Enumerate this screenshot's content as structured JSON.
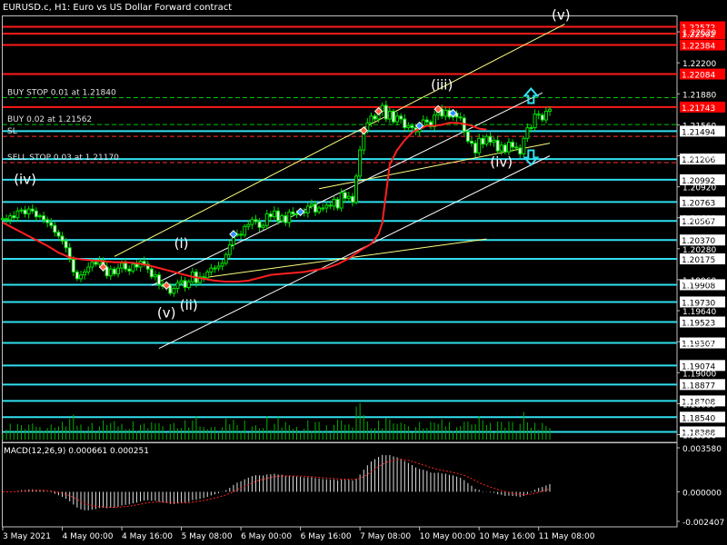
{
  "header": {
    "title": "EURUSD.c, H1:  Euro vs US Dollar Forward contract"
  },
  "macd_label": "MACD(12,26,9) 0.000661 0.000251",
  "chart_data": {
    "type": "candlestick",
    "symbol": "EURUSD.c",
    "timeframe": "H1",
    "price_range": [
      1.1828,
      1.2268
    ],
    "price_ticks": [
      {
        "value": 1.2252,
        "label": "1.22520"
      },
      {
        "value": 1.222,
        "label": "1.22200"
      },
      {
        "value": 1.2188,
        "label": "1.21880"
      },
      {
        "value": 1.2156,
        "label": "1.21560"
      },
      {
        "value": 1.2124,
        "label": "1.21240"
      },
      {
        "value": 1.2092,
        "label": "1.20920"
      },
      {
        "value": 1.206,
        "label": "1.20600"
      },
      {
        "value": 1.2028,
        "label": "1.20280"
      },
      {
        "value": 1.1996,
        "label": "1.19960"
      },
      {
        "value": 1.1964,
        "label": "1.19640"
      },
      {
        "value": 1.1932,
        "label": "1.19320"
      },
      {
        "value": 1.19,
        "label": "1.19000"
      },
      {
        "value": 1.1868,
        "label": "1.18680"
      },
      {
        "value": 1.1836,
        "label": "1.18360"
      }
    ],
    "red_levels": [
      1.22572,
      1.22502,
      1.22384,
      1.22084,
      1.21743
    ],
    "cyan_levels": [
      1.21494,
      1.21206,
      1.20992,
      1.20763,
      1.20567,
      1.2037,
      1.20175,
      1.19908,
      1.1973,
      1.19523,
      1.19307,
      1.19074,
      1.18877,
      1.18708,
      1.1854,
      1.18388
    ],
    "red_price_labels": [
      "1.22572",
      "1.22502",
      "1.22384",
      "1.22084",
      "1.21743"
    ],
    "cyan_price_labels": [
      "1.21494",
      "1.21206",
      "1.20992",
      "1.20763",
      "1.20567",
      "1.20370",
      "1.20175",
      "1.19908",
      "1.19730",
      "1.19523",
      "1.19307",
      "1.19074",
      "1.18877",
      "1.18708",
      "1.18540",
      "1.18388"
    ],
    "order_lines": [
      {
        "label": "BUY STOP 0.01 at 1.21840",
        "price": 1.2184,
        "color": "#00c800",
        "style": "dash"
      },
      {
        "label": "BUY 0.02 at 1.21562",
        "price": 1.21562,
        "color": "#00c800",
        "style": "dash"
      },
      {
        "label": "SL",
        "price": 1.2144,
        "color": "#ff3030",
        "style": "dash"
      },
      {
        "label": "SELL STOP 0.03 at 1.21170",
        "price": 1.2117,
        "color": "#ff3030",
        "style": "dash"
      }
    ],
    "wave_labels": [
      {
        "text": "(iv)",
        "x_idx": 6,
        "price": 1.2095
      },
      {
        "text": "(i)",
        "x_idx": 48,
        "price": 1.2029
      },
      {
        "text": "(v)",
        "x_idx": 44,
        "price": 1.1957
      },
      {
        "text": "(ii)",
        "x_idx": 50,
        "price": 1.1965
      },
      {
        "text": "(iii)",
        "x_idx": 118,
        "price": 1.21925
      },
      {
        "text": "(iv)",
        "x_idx": 134,
        "price": 1.21125
      },
      {
        "text": "(v)",
        "x_idx": 150,
        "price": 1.22645
      }
    ],
    "close": [
      1.2059,
      1.2058,
      1.2062,
      1.206,
      1.2067,
      1.2068,
      1.2064,
      1.2069,
      1.2067,
      1.2061,
      1.2062,
      1.2058,
      1.2055,
      1.2052,
      1.2045,
      1.2041,
      1.2036,
      1.2029,
      1.2017,
      1.2004,
      1.1997,
      1.2001,
      1.2004,
      1.2009,
      1.2014,
      1.2012,
      1.2016,
      1.2009,
      1.2,
      1.2007,
      1.2002,
      1.2008,
      1.2013,
      1.2007,
      1.2005,
      1.2012,
      1.2009,
      1.2015,
      1.2012,
      1.2007,
      1.1999,
      1.2001,
      1.1991,
      1.1989,
      1.199,
      1.1982,
      1.1987,
      1.1993,
      1.1995,
      1.1988,
      1.1994,
      1.2004,
      1.1993,
      1.1999,
      1.1998,
      1.2004,
      1.2008,
      1.2008,
      1.201,
      1.2013,
      1.2022,
      1.2032,
      1.2043,
      1.2043,
      1.2042,
      1.2051,
      1.2053,
      1.2058,
      1.2056,
      1.205,
      1.2052,
      1.2064,
      1.2061,
      1.2067,
      1.2057,
      1.2062,
      1.2055,
      1.2066,
      1.2064,
      1.2064,
      1.2066,
      1.2065,
      1.2072,
      1.2074,
      1.2066,
      1.207,
      1.207,
      1.2073,
      1.2072,
      1.2079,
      1.207,
      1.2086,
      1.208,
      1.2082,
      1.2076,
      1.2103,
      1.213,
      1.215,
      1.2158,
      1.2165,
      1.2162,
      1.217,
      1.2176,
      1.2162,
      1.217,
      1.2159,
      1.2165,
      1.2162,
      1.2153,
      1.2155,
      1.2153,
      1.2149,
      1.2155,
      1.2161,
      1.2159,
      1.2154,
      1.2166,
      1.2172,
      1.2165,
      1.2171,
      1.2164,
      1.2168,
      1.2164,
      1.2163,
      1.2149,
      1.2139,
      1.2137,
      1.2127,
      1.2142,
      1.2136,
      1.2144,
      1.2138,
      1.214,
      1.2129,
      1.2135,
      1.2128,
      1.2138,
      1.2133,
      1.2132,
      1.2126,
      1.2142,
      1.2153,
      1.2153,
      1.2167,
      1.2166,
      1.2161,
      1.217,
      1.2172
    ],
    "ma_red": [
      1.2055,
      1.2049,
      1.2043,
      1.2037,
      1.2031,
      1.2024,
      1.2019,
      1.2017,
      1.2016,
      1.2015,
      1.2014,
      1.2014,
      1.2013,
      1.2011,
      1.2008,
      1.2005,
      1.2002,
      1.1999,
      1.1997,
      1.1995,
      1.1994,
      1.1994,
      1.1995,
      1.1998,
      1.2001,
      1.2002,
      1.2003,
      1.2004,
      1.2006,
      1.2008,
      1.2012,
      1.2018,
      1.2026,
      1.2033,
      1.2038,
      1.2043,
      1.2055,
      1.2085,
      1.2115,
      1.213,
      1.214,
      1.2148,
      1.2152,
      1.2155,
      1.2155,
      1.2156,
      1.2158,
      1.2158,
      1.2157,
      1.2155,
      1.2152,
      1.2151
    ],
    "ma_red_x": [
      0,
      3,
      6,
      9,
      12,
      15,
      18,
      21,
      24,
      27,
      30,
      33,
      36,
      39,
      42,
      45,
      48,
      51,
      54,
      57,
      60,
      63,
      66,
      69,
      72,
      75,
      78,
      81,
      84,
      87,
      90,
      93,
      96,
      99,
      100,
      101,
      102,
      103,
      104,
      106,
      108,
      110,
      112,
      114,
      116,
      118,
      120,
      122,
      124,
      126,
      128,
      130
    ],
    "trend_lines": [
      {
        "color": "#ffff80",
        "x1": 30,
        "p1": 1.202,
        "x2": 151,
        "p2": 1.226
      },
      {
        "color": "#ffffff",
        "x1": 40,
        "p1": 1.199,
        "x2": 145,
        "p2": 1.2189
      },
      {
        "color": "#ffffff",
        "x1": 42,
        "p1": 1.1925,
        "x2": 147,
        "p2": 1.2124
      },
      {
        "color": "#ffff80",
        "x1": 85,
        "p1": 1.209,
        "x2": 147,
        "p2": 1.2137
      },
      {
        "color": "#ffff80",
        "x1": 52,
        "p1": 1.1997,
        "x2": 130,
        "p2": 1.2038
      }
    ],
    "x_labels": [
      "3 May 2021",
      "4 May 00:00",
      "4 May 16:00",
      "5 May 08:00",
      "6 May 00:00",
      "6 May 16:00",
      "7 May 08:00",
      "10 May 00:00",
      "10 May 16:00",
      "11 May 08:00"
    ],
    "macd_ticks": [
      {
        "value": 0.00358,
        "label": "0.003580"
      },
      {
        "value": 0.0,
        "label": "0.000000"
      },
      {
        "value": -0.002407,
        "label": "-0.002407"
      }
    ]
  }
}
